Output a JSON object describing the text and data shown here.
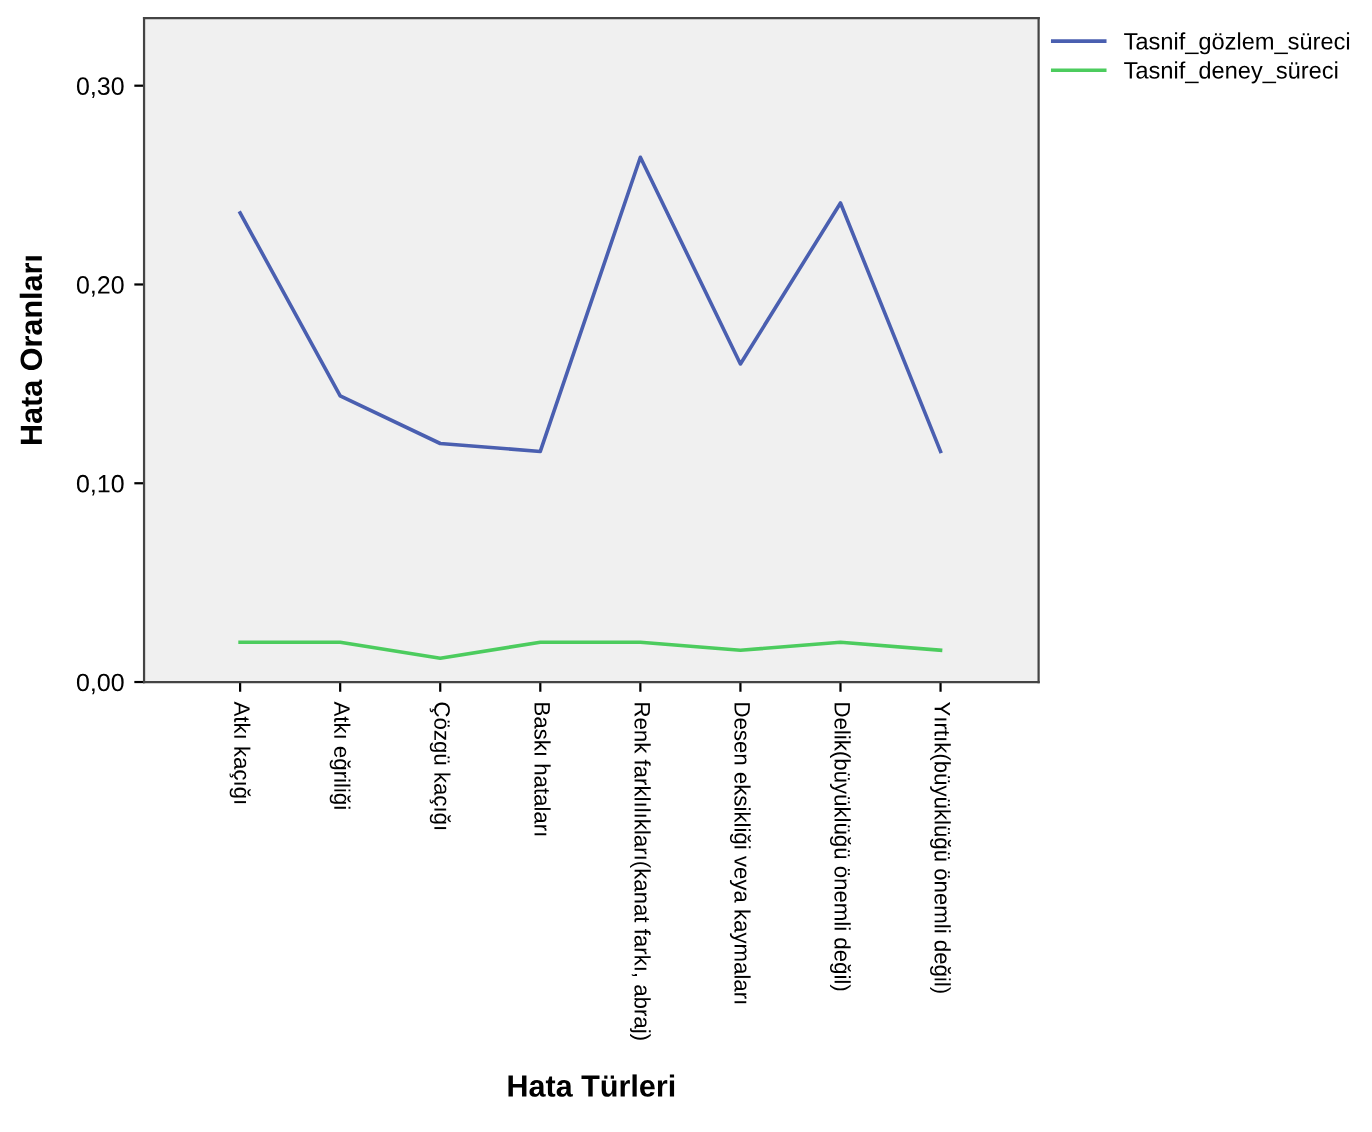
{
  "chart_data": {
    "type": "line",
    "xlabel": "Hata Türleri",
    "ylabel": "Hata Oranları",
    "categories": [
      "Atkı kaçığı",
      "Atkı eğriliği",
      "Çözgü kaçığı",
      "Baskı hataları",
      "Renk farklılıkları(kanat farkı, abraj)",
      "Desen eksikliği veya kaymaları",
      "Delik(büyüklüğü önemli değil)",
      "Yırtık(büyüklüğü önemli değil)"
    ],
    "series": [
      {
        "name": "Tasnif_gözlem_süreci",
        "color": "#4a5fb0",
        "values": [
          0.236,
          0.144,
          0.12,
          0.116,
          0.264,
          0.16,
          0.241,
          0.116
        ]
      },
      {
        "name": "Tasnif_deney_süreci",
        "color": "#4ccc5e",
        "values": [
          0.02,
          0.02,
          0.012,
          0.02,
          0.02,
          0.016,
          0.02,
          0.016
        ]
      }
    ],
    "ylim": [
      0,
      0.334
    ],
    "yticks": [
      {
        "value": 0,
        "label": "0,00"
      },
      {
        "value": 0.1,
        "label": "0,10"
      },
      {
        "value": 0.2,
        "label": "0,20"
      },
      {
        "value": 0.3,
        "label": "0,30"
      }
    ],
    "grid": false,
    "legend": "top right",
    "marker": "none",
    "line_style": "solid"
  }
}
